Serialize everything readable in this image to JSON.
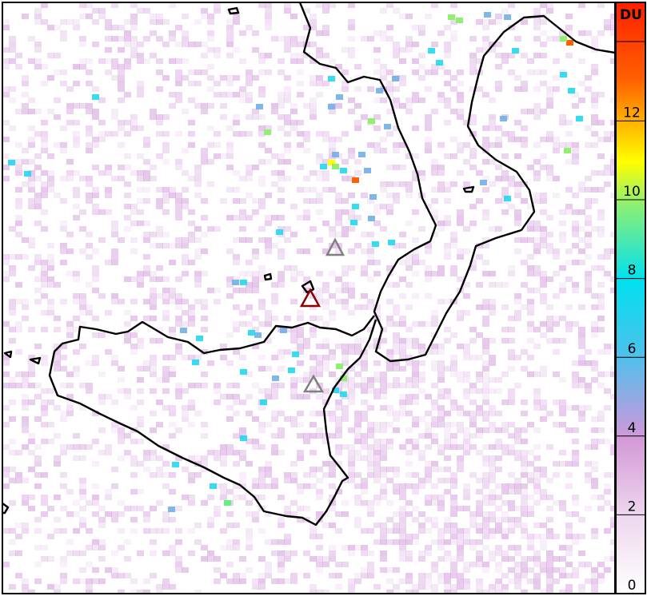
{
  "colorbar": {
    "unit": "DU",
    "ticks": [
      "0",
      "2",
      "4",
      "6",
      "8",
      "10",
      "12"
    ],
    "range": [
      0,
      15
    ],
    "colors": [
      "#ffffff",
      "#e8c8e8",
      "#d090d8",
      "#8aa8e0",
      "#00e0f0",
      "#60f080",
      "#ffff00",
      "#ff8800",
      "#ff2000"
    ]
  },
  "markers": [
    {
      "name": "volcano-north",
      "color": "#808080"
    },
    {
      "name": "volcano-center",
      "color": "#8b0000"
    },
    {
      "name": "volcano-south",
      "color": "#808080"
    }
  ],
  "coastline_color": "#000000"
}
